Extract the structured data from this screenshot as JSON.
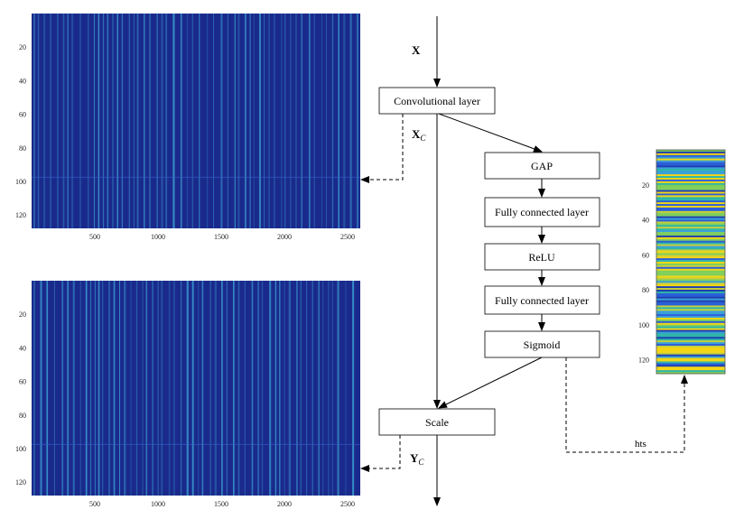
{
  "input_var": {
    "main": "X"
  },
  "xc_var": {
    "main": "X",
    "sub": "C"
  },
  "yc_var": {
    "main": "Y",
    "sub": "C"
  },
  "hts_label": "hts",
  "boxes": {
    "conv": "Convolutional layer",
    "gap": "GAP",
    "fc1": "Fully connected layer",
    "relu": "ReLU",
    "fc2": "Fully connected layer",
    "sigmoid": "Sigmoid",
    "scale": "Scale"
  },
  "heatmap_top": {
    "y_ticks": [
      "20",
      "40",
      "60",
      "80",
      "100",
      "120"
    ],
    "x_ticks": [
      "500",
      "1000",
      "1500",
      "2000",
      "2500"
    ]
  },
  "heatmap_bottom": {
    "y_ticks": [
      "20",
      "40",
      "60",
      "80",
      "100",
      "120"
    ],
    "x_ticks": [
      "500",
      "1000",
      "1500",
      "2000",
      "2500"
    ]
  },
  "weights_bar": {
    "y_ticks": [
      "20",
      "40",
      "60",
      "80",
      "100",
      "120"
    ]
  },
  "colors": {
    "heat_bg": "#1a2a8c",
    "heat_line": "#3ea6d6",
    "bar_yellow": "#f5d614",
    "bar_teal": "#2fb6a8",
    "bar_blue": "#2b5fd8"
  }
}
